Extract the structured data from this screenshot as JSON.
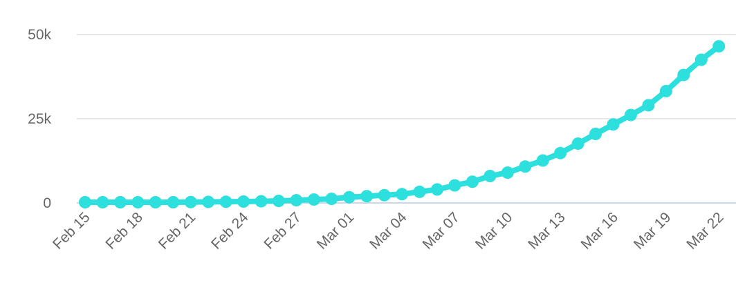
{
  "colors": {
    "series": "#2ddfdd"
  },
  "chart_data": {
    "type": "line",
    "title": "",
    "xlabel": "",
    "ylabel": "",
    "ylim": [
      0,
      50000
    ],
    "yticks": [
      {
        "value": 0,
        "label": "0"
      },
      {
        "value": 25000,
        "label": "25k"
      },
      {
        "value": 50000,
        "label": "50k"
      }
    ],
    "xtick_labels": [
      "Feb 15",
      "Feb 18",
      "Feb 21",
      "Feb 24",
      "Feb 27",
      "Mar 01",
      "Mar 04",
      "Mar 07",
      "Mar 10",
      "Mar 13",
      "Mar 16",
      "Mar 19",
      "Mar 22"
    ],
    "x": [
      "Feb 15",
      "Feb 16",
      "Feb 17",
      "Feb 18",
      "Feb 19",
      "Feb 20",
      "Feb 21",
      "Feb 22",
      "Feb 23",
      "Feb 24",
      "Feb 25",
      "Feb 26",
      "Feb 27",
      "Feb 28",
      "Feb 29",
      "Mar 01",
      "Mar 02",
      "Mar 03",
      "Mar 04",
      "Mar 05",
      "Mar 06",
      "Mar 07",
      "Mar 08",
      "Mar 09",
      "Mar 10",
      "Mar 11",
      "Mar 12",
      "Mar 13",
      "Mar 14",
      "Mar 15",
      "Mar 16",
      "Mar 17",
      "Mar 18",
      "Mar 19",
      "Mar 20",
      "Mar 21",
      "Mar 22"
    ],
    "series": [
      {
        "values": [
          200,
          200,
          200,
          200,
          200,
          200,
          250,
          300,
          350,
          400,
          500,
          600,
          800,
          1000,
          1200,
          1700,
          2000,
          2300,
          2600,
          3300,
          4000,
          5200,
          6300,
          8000,
          9000,
          10800,
          12600,
          14800,
          17600,
          20500,
          23300,
          26100,
          29000,
          33200,
          38000,
          42500,
          46500
        ]
      }
    ]
  }
}
